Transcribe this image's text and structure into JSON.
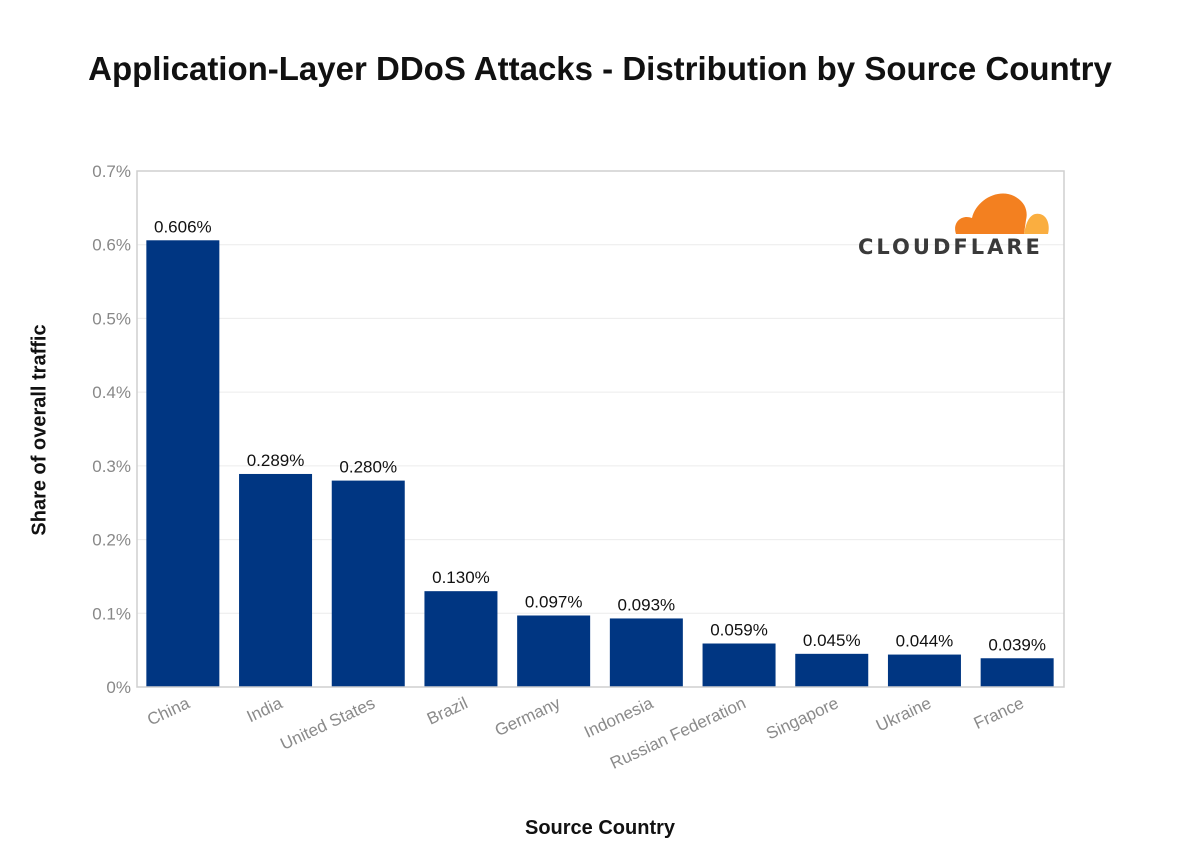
{
  "chart_data": {
    "type": "bar",
    "title": "Application-Layer DDoS Attacks - Distribution by Source Country",
    "xlabel": "Source Country",
    "ylabel": "Share of overall traffic",
    "categories": [
      "China",
      "India",
      "United States",
      "Brazil",
      "Germany",
      "Indonesia",
      "Russian Federation",
      "Singapore",
      "Ukraine",
      "France"
    ],
    "values": [
      0.606,
      0.289,
      0.28,
      0.13,
      0.097,
      0.093,
      0.059,
      0.045,
      0.044,
      0.039
    ],
    "data_labels": [
      "0.606%",
      "0.289%",
      "0.280%",
      "0.130%",
      "0.097%",
      "0.093%",
      "0.059%",
      "0.045%",
      "0.044%",
      "0.039%"
    ],
    "ylim": [
      0,
      0.7
    ],
    "yticks": [
      0,
      0.1,
      0.2,
      0.3,
      0.4,
      0.5,
      0.6,
      0.7
    ],
    "ytick_labels": [
      "0%",
      "0.1%",
      "0.2%",
      "0.3%",
      "0.4%",
      "0.5%",
      "0.6%",
      "0.7%"
    ],
    "grid": true,
    "legend": "none",
    "bar_color": "#003682"
  },
  "logo": {
    "text": "CLOUDFLARE",
    "colors": [
      "#f38020",
      "#faae40"
    ]
  }
}
